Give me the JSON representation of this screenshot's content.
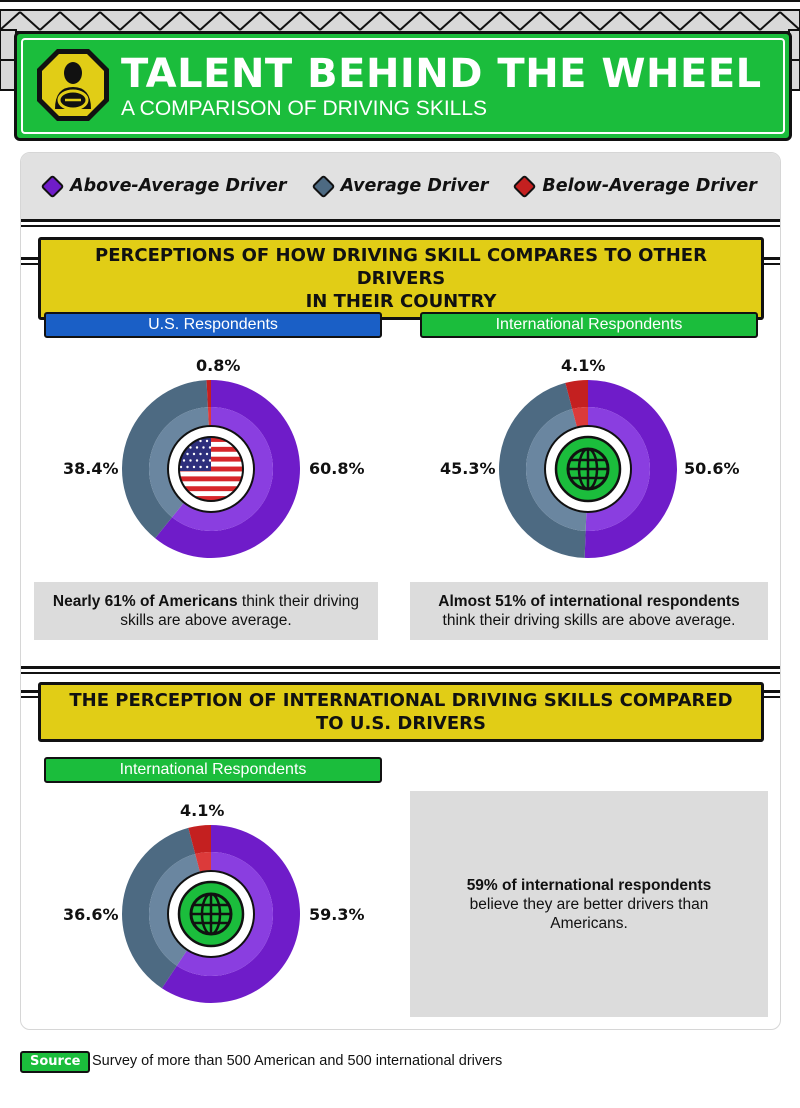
{
  "header": {
    "title": "TALENT BEHIND THE WHEEL",
    "subtitle": "A COMPARISON OF DRIVING SKILLS",
    "icon": "driver-steering-wheel-icon"
  },
  "legend": [
    {
      "label": "Above-Average Driver",
      "color": "#6f1cc9"
    },
    {
      "label": "Average Driver",
      "color": "#4d6a82"
    },
    {
      "label": "Below-Average Driver",
      "color": "#c42020"
    }
  ],
  "section1": {
    "title_line1": "PERCEPTIONS OF HOW DRIVING SKILL COMPARES TO OTHER DRIVERS",
    "title_line2": "IN THEIR COUNTRY",
    "us_label": "U.S. Respondents",
    "intl_label": "International Respondents",
    "us_caption_bold": "Nearly 61% of Americans",
    "us_caption_rest": " think their driving skills are above average.",
    "intl_caption_bold": "Almost 51% of international respondents",
    "intl_caption_rest": " think their driving skills are above average."
  },
  "section2": {
    "title_line1": "THE PERCEPTION OF INTERNATIONAL DRIVING SKILLS COMPARED",
    "title_line2": "TO U.S. DRIVERS",
    "intl_label": "International Respondents",
    "caption_bold": "59% of international respondents",
    "caption_rest": "believe they are better drivers than Americans."
  },
  "source": {
    "tag": "Source",
    "text": "Survey of more than 500 American and 500 international drivers"
  },
  "chart_data": [
    {
      "type": "pie",
      "title": "U.S. Respondents",
      "categories": [
        "Above-Average Driver",
        "Average Driver",
        "Below-Average Driver"
      ],
      "values": [
        60.8,
        38.4,
        0.8
      ],
      "labels": [
        "60.8%",
        "38.4%",
        "0.8%"
      ],
      "center_icon": "us-flag-icon"
    },
    {
      "type": "pie",
      "title": "International Respondents",
      "categories": [
        "Above-Average Driver",
        "Average Driver",
        "Below-Average Driver"
      ],
      "values": [
        50.6,
        45.3,
        4.1
      ],
      "labels": [
        "50.6%",
        "45.3%",
        "4.1%"
      ],
      "center_icon": "globe-icon"
    },
    {
      "type": "pie",
      "title": "International Respondents",
      "categories": [
        "Above-Average Driver",
        "Average Driver",
        "Below-Average Driver"
      ],
      "values": [
        59.3,
        36.6,
        4.1
      ],
      "labels": [
        "59.3%",
        "36.6%",
        "4.1%"
      ],
      "center_icon": "globe-icon"
    }
  ]
}
